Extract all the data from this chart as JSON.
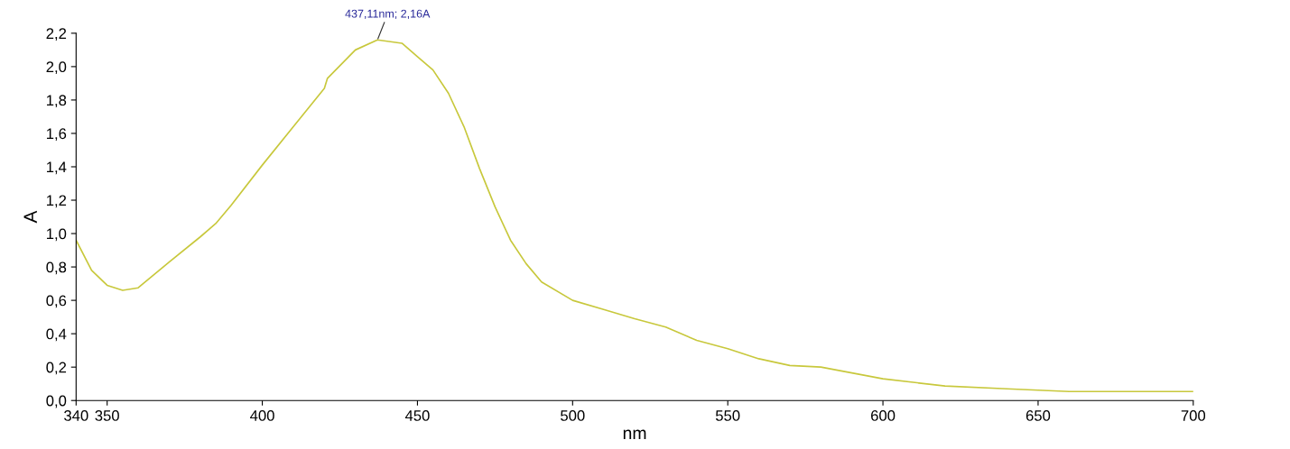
{
  "chart_data": {
    "type": "line",
    "xlabel": "nm",
    "ylabel": "A",
    "x": [
      340,
      345,
      350,
      355,
      360,
      370,
      380,
      385,
      390,
      400,
      410,
      420,
      421,
      430,
      437.11,
      445,
      450,
      455,
      460,
      465,
      470,
      475,
      480,
      485,
      490,
      500,
      510,
      520,
      530,
      540,
      550,
      560,
      570,
      580,
      600,
      620,
      640,
      660,
      700
    ],
    "series": [
      {
        "color": "#c8c83c",
        "values": [
          0.96,
          0.78,
          0.69,
          0.66,
          0.675,
          0.83,
          0.98,
          1.06,
          1.17,
          1.41,
          1.64,
          1.87,
          1.93,
          2.1,
          2.16,
          2.14,
          2.06,
          1.98,
          1.84,
          1.64,
          1.39,
          1.16,
          0.96,
          0.82,
          0.71,
          0.6,
          0.545,
          0.49,
          0.44,
          0.36,
          0.31,
          0.25,
          0.21,
          0.2,
          0.13,
          0.087,
          0.07,
          0.054,
          0.054
        ]
      }
    ],
    "xlim": [
      340,
      700
    ],
    "xticks": [
      340,
      350,
      400,
      450,
      500,
      550,
      600,
      650,
      700
    ],
    "ylim": [
      0,
      2.2
    ],
    "yticks": [
      {
        "value": 0,
        "label": "0,0"
      },
      {
        "value": 0.2,
        "label": "0,2"
      },
      {
        "value": 0.4,
        "label": "0,4"
      },
      {
        "value": 0.6,
        "label": "0,6"
      },
      {
        "value": 0.8,
        "label": "0,8"
      },
      {
        "value": 1.0,
        "label": "1,0"
      },
      {
        "value": 1.2,
        "label": "1,2"
      },
      {
        "value": 1.4,
        "label": "1,4"
      },
      {
        "value": 1.6,
        "label": "1,6"
      },
      {
        "value": 1.8,
        "label": "1,8"
      },
      {
        "value": 2.0,
        "label": "2,0"
      },
      {
        "value": 2.2,
        "label": "2,2"
      }
    ],
    "annotations": [
      {
        "text": "437,11nm; 2,16A",
        "x": 437.11,
        "y": 2.16
      }
    ],
    "grid": false,
    "legend": false,
    "marker": "none",
    "line_style": "solid"
  }
}
